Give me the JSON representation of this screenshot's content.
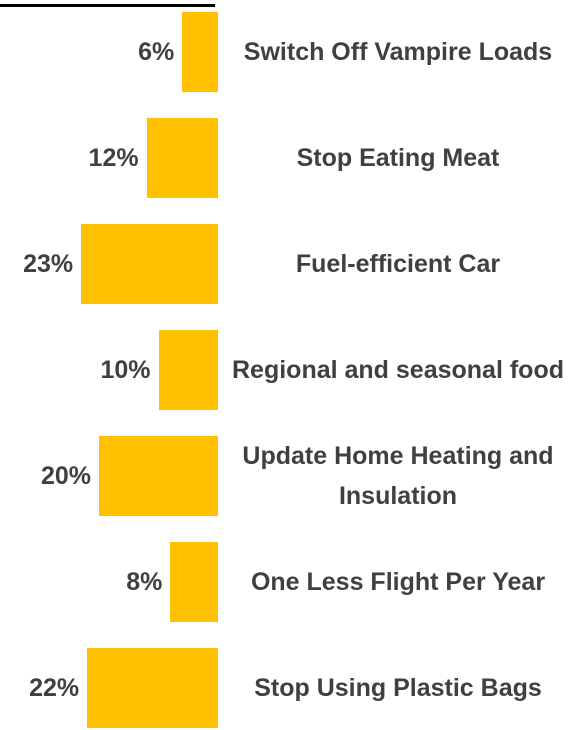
{
  "chart_data": {
    "type": "bar",
    "orientation": "horizontal",
    "color": "#FFC000",
    "categories": [
      "Switch Off Vampire Loads",
      "Stop Eating Meat",
      "Fuel-efficient Car",
      "Regional and seasonal food",
      "Update Home Heating and Insulation",
      "One Less Flight Per Year",
      "Stop Using Plastic Bags"
    ],
    "values": [
      6,
      12,
      23,
      10,
      20,
      8,
      22
    ],
    "value_labels": [
      "6%",
      "12%",
      "23%",
      "10%",
      "20%",
      "8%",
      "22%"
    ]
  }
}
